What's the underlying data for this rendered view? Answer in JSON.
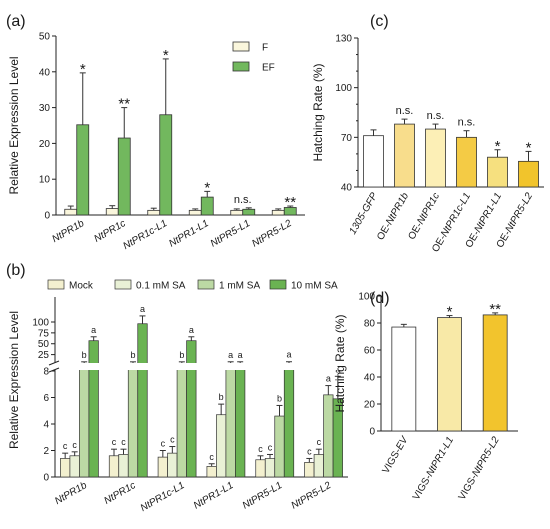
{
  "colors": {
    "F": "#faf6dc",
    "EF": "#72b85e",
    "Mock": "#f3f0cf",
    "SA01": "#e9f1d6",
    "SA1": "#bcd9a4",
    "SA10": "#6ab352",
    "c_1305": "#ffffff",
    "c_1b": "#f8dd8c",
    "c_1c": "#fcefb6",
    "c_L1": "#f4cb45",
    "c_NL1": "#f6e07f",
    "c_L2": "#f1c42c",
    "d_EV": "#ffffff",
    "d_L1": "#f8e9a7",
    "d_L2": "#f2c42d",
    "edge": "#333333"
  },
  "chart_data": [
    {
      "panel": "(a)",
      "type": "bar",
      "ylabel": "Relative Expression Level",
      "ylim": [
        0,
        50
      ],
      "yticks": [
        "0",
        "10",
        "20",
        "30",
        "40",
        "50"
      ],
      "categories": [
        "NtPR1b",
        "NtPR1c",
        "NtPR1c-L1",
        "NtPR1-L1",
        "NtPR5-L1",
        "NtPR5-L2"
      ],
      "series": [
        {
          "name": "F",
          "values": [
            1.6,
            1.8,
            1.3,
            1.3,
            1.3,
            1.3
          ],
          "err": [
            0.9,
            0.8,
            0.6,
            0.4,
            0.4,
            0.4
          ]
        },
        {
          "name": "EF",
          "values": [
            25.2,
            21.5,
            28.0,
            5.0,
            1.6,
            2.1
          ],
          "err": [
            14.5,
            8.5,
            15.6,
            1.6,
            0.4,
            0.4
          ]
        }
      ],
      "significance": [
        "*",
        "**",
        "*",
        "*",
        "n.s.",
        "**"
      ]
    },
    {
      "panel": "(b)",
      "type": "bar",
      "ylabel": "Relative Expression Level",
      "categories": [
        "NtPR1b",
        "NtPR1c",
        "NtPR1c-L1",
        "NtPR1-L1",
        "NtPR5-L1",
        "NtPR5-L2"
      ],
      "yticks_lower": [
        "0",
        "2",
        "4",
        "6",
        "8"
      ],
      "yticks_upper": [
        "25",
        "50",
        "75",
        "100"
      ],
      "series": [
        {
          "name": "Mock",
          "values": [
            1.4,
            1.6,
            1.5,
            0.8,
            1.3,
            1.1
          ],
          "err": [
            0.4,
            0.5,
            0.5,
            0.2,
            0.3,
            0.3
          ],
          "letters": [
            "c",
            "c",
            "c",
            "c",
            "c",
            "c"
          ]
        },
        {
          "name": "0.1 mM SA",
          "values": [
            1.6,
            1.7,
            1.8,
            4.7,
            1.4,
            1.7
          ],
          "err": [
            0.3,
            0.4,
            0.5,
            0.8,
            0.3,
            0.4
          ],
          "letters": [
            "c",
            "c",
            "c",
            "b",
            "c",
            "c"
          ]
        },
        {
          "name": "1 mM SA",
          "values": [
            8.3,
            8.3,
            8.3,
            8.3,
            4.6,
            6.2
          ],
          "err": [
            0.1,
            0.1,
            0.1,
            0.2,
            0.8,
            0.7
          ],
          "letters": [
            "b",
            "b",
            "b",
            "a",
            "b",
            "a"
          ]
        },
        {
          "name": "10 mM SA",
          "values": [
            57,
            96,
            57,
            8.3,
            8.3,
            5.9
          ],
          "err": [
            9,
            18,
            9,
            0.2,
            0.3,
            1.7
          ],
          "letters": [
            "a",
            "a",
            "a",
            "a",
            "a",
            "a"
          ]
        }
      ]
    },
    {
      "panel": "(c)",
      "type": "bar",
      "ylabel": "Hatching Rate (%)",
      "ylim": [
        40,
        130
      ],
      "yticks": [
        "40",
        "70",
        "100",
        "130"
      ],
      "yticks_minor": [
        50,
        60,
        80,
        90,
        110,
        120
      ],
      "categories": [
        "1305-GFP",
        "OE-NtPR1b",
        "OE-NtPR1c",
        "OE-NtPR1c-L1",
        "OE-NtPR1-L1",
        "OE-NtPR5-L2"
      ],
      "values": [
        71,
        78,
        75,
        70,
        58,
        55.5
      ],
      "err": [
        3.5,
        3.0,
        3.0,
        4.0,
        4.5,
        6.0
      ],
      "significance": [
        "",
        "n.s.",
        "n.s.",
        "n.s.",
        "*",
        "*"
      ]
    },
    {
      "panel": "(d)",
      "type": "bar",
      "ylabel": "Hatching Rate (%)",
      "ylim": [
        0,
        100
      ],
      "yticks": [
        "0",
        "20",
        "40",
        "60",
        "80",
        "100"
      ],
      "categories": [
        "VIGS-EV",
        "VIGS-NtPR1-L1",
        "VIGS-NtPR5-L2"
      ],
      "values": [
        77,
        84,
        86
      ],
      "err": [
        2.0,
        1.5,
        1.5
      ],
      "significance": [
        "",
        "*",
        "**"
      ]
    }
  ]
}
